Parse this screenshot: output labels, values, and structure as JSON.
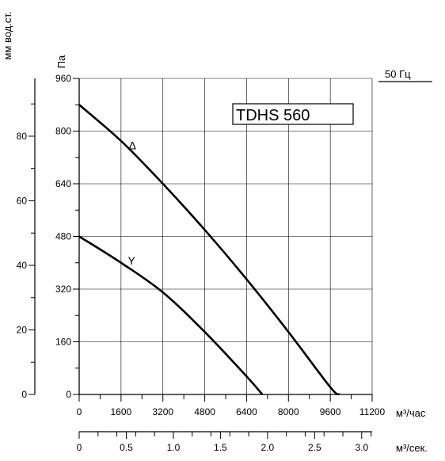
{
  "chart_data": {
    "type": "line",
    "title": "TDHS 560",
    "frequency_label": "50 Гц",
    "x_primary": {
      "label": "м³/час",
      "range": [
        0,
        11200
      ],
      "ticks": [
        0,
        1600,
        3200,
        4800,
        6400,
        8000,
        9600,
        11200
      ]
    },
    "x_secondary": {
      "label": "м³/сек.",
      "range": [
        0,
        3.111
      ],
      "ticks": [
        "0",
        "0.5",
        "1.0",
        "1.5",
        "2.0",
        "2.5",
        "3.0"
      ]
    },
    "y_primary": {
      "label": "Па",
      "range": [
        0,
        960
      ],
      "ticks": [
        0,
        160,
        320,
        480,
        640,
        800,
        960
      ]
    },
    "y_secondary": {
      "label": "мм вод.ст.",
      "range": [
        0,
        97.9
      ],
      "ticks": [
        0,
        20,
        40,
        60,
        80
      ]
    },
    "grid": true,
    "series": [
      {
        "name": "Δ",
        "x": [
          0,
          1600,
          3200,
          4800,
          6400,
          8000,
          9600,
          9300,
          9350
        ],
        "y": [
          880,
          770,
          640,
          500,
          350,
          190,
          20,
          0,
          0
        ]
      },
      {
        "name": "Y",
        "x": [
          0,
          1600,
          3200,
          4800,
          6400,
          7000
        ],
        "y": [
          480,
          400,
          310,
          190,
          55,
          0
        ]
      }
    ]
  }
}
